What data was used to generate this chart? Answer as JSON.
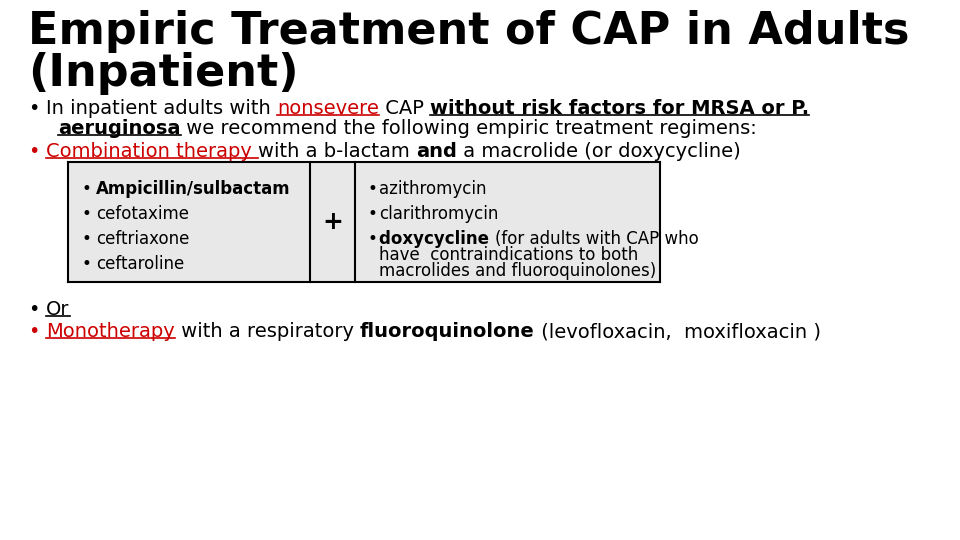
{
  "background_color": "#ffffff",
  "title_line1": "Empiric Treatment of CAP in Adults",
  "title_line2": "(Inpatient)",
  "title_fontsize": 32,
  "red_color": "#cc0000",
  "text_color": "#000000",
  "body_fontsize": 14,
  "table_fontsize": 12,
  "table_bg": "#e8e8e8",
  "left_items": [
    "Ampicillin/sulbactam",
    "cefotaxime",
    "ceftriaxone",
    "ceftaroline"
  ],
  "right_items": [
    "azithromycin",
    "clarithromycin"
  ]
}
